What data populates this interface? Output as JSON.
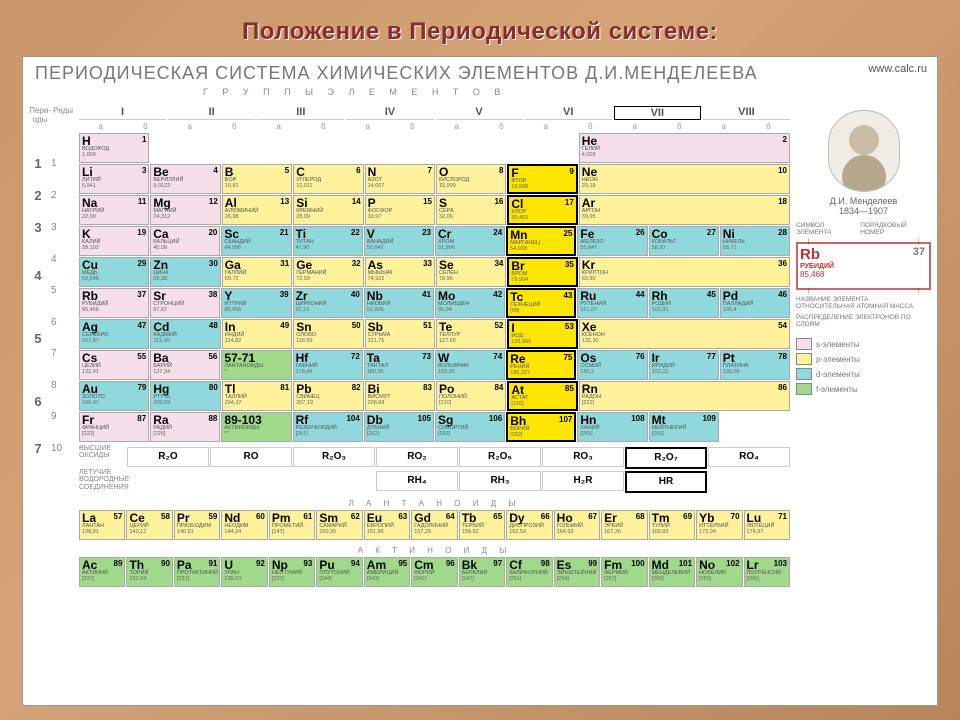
{
  "title": "Положение в Периодической системе:",
  "card_title": "ПЕРИОДИЧЕСКАЯ СИСТЕМА ХИМИЧЕСКИХ ЭЛЕМЕНТОВ Д.И.МЕНДЕЛЕЕВА",
  "subtitle": "Г Р У П П Ы   Э Л Е М Е Н Т О В",
  "site": "www.calc.ru",
  "groups": [
    "I",
    "II",
    "III",
    "IV",
    "V",
    "VI",
    "VII",
    "VIII"
  ],
  "periods": [
    {
      "p": "1",
      "rows": [
        "1"
      ]
    },
    {
      "p": "2",
      "rows": [
        "2"
      ]
    },
    {
      "p": "3",
      "rows": [
        "3"
      ]
    },
    {
      "p": "4",
      "rows": [
        "4",
        "5"
      ]
    },
    {
      "p": "5",
      "rows": [
        "6",
        "7"
      ]
    },
    {
      "p": "6",
      "rows": [
        "8",
        "9"
      ]
    },
    {
      "p": "7",
      "rows": [
        "10"
      ]
    }
  ],
  "colors": {
    "s": "#f6dfe8",
    "p": "#fff29a",
    "d": "#8fd9dc",
    "f": "#a1d98a",
    "none": "#ffffff",
    "hl": "#ffe600",
    "border": "#aaaaaa",
    "bg": "#ffffff",
    "title": "#8b2a2a"
  },
  "cells": {
    "r1": [
      {
        "s": "H",
        "n": 1,
        "nm": "ВОДОРОД",
        "w": "1,008",
        "c": "s"
      },
      null,
      null,
      null,
      null,
      null,
      null,
      {
        "s": "He",
        "n": 2,
        "nm": "ГЕЛИЙ",
        "w": "4,003",
        "c": "s",
        "col": 8
      }
    ],
    "r2": [
      {
        "s": "Li",
        "n": 3,
        "nm": "ЛИТИЙ",
        "w": "6,941",
        "c": "s"
      },
      {
        "s": "Be",
        "n": 4,
        "nm": "БЕРИЛЛИЙ",
        "w": "9,0122",
        "c": "s"
      },
      {
        "s": "B",
        "n": 5,
        "nm": "БОР",
        "w": "10,81",
        "c": "p"
      },
      {
        "s": "C",
        "n": 6,
        "nm": "УГЛЕРОД",
        "w": "12,011",
        "c": "p"
      },
      {
        "s": "N",
        "n": 7,
        "nm": "АЗОТ",
        "w": "14,007",
        "c": "p"
      },
      {
        "s": "O",
        "n": 8,
        "nm": "КИСЛОРОД",
        "w": "15,999",
        "c": "p"
      },
      {
        "s": "F",
        "n": 9,
        "nm": "ФТОР",
        "w": "18,998",
        "c": "hl",
        "hl": 1
      },
      {
        "s": "Ne",
        "n": 10,
        "nm": "НЕОН",
        "w": "20,18",
        "c": "p",
        "col": 8
      }
    ],
    "r3": [
      {
        "s": "Na",
        "n": 11,
        "nm": "НАТРИЙ",
        "w": "22,99",
        "c": "s"
      },
      {
        "s": "Mg",
        "n": 12,
        "nm": "МАГНИЙ",
        "w": "24,312",
        "c": "s"
      },
      {
        "s": "Al",
        "n": 13,
        "nm": "АЛЮМИНИЙ",
        "w": "26,98",
        "c": "p"
      },
      {
        "s": "Si",
        "n": 14,
        "nm": "КРЕМНИЙ",
        "w": "28,09",
        "c": "p"
      },
      {
        "s": "P",
        "n": 15,
        "nm": "ФОСФОР",
        "w": "30,97",
        "c": "p"
      },
      {
        "s": "S",
        "n": 16,
        "nm": "СЕРА",
        "w": "32,06",
        "c": "p"
      },
      {
        "s": "Cl",
        "n": 17,
        "nm": "ХЛОР",
        "w": "35,453",
        "c": "hl",
        "hl": 1
      },
      {
        "s": "Ar",
        "n": 18,
        "nm": "АРГОН",
        "w": "39,95",
        "c": "p",
        "col": 8
      }
    ],
    "r4": [
      {
        "s": "K",
        "n": 19,
        "nm": "КАЛИЙ",
        "w": "39,102",
        "c": "s"
      },
      {
        "s": "Ca",
        "n": 20,
        "nm": "КАЛЬЦИЙ",
        "w": "40,08",
        "c": "s"
      },
      {
        "s": "Sc",
        "n": 21,
        "nm": "СКАНДИЙ",
        "w": "44,956",
        "c": "d"
      },
      {
        "s": "Ti",
        "n": 22,
        "nm": "ТИТАН",
        "w": "47,90",
        "c": "d"
      },
      {
        "s": "V",
        "n": 23,
        "nm": "ВАНАДИЙ",
        "w": "50,942",
        "c": "d"
      },
      {
        "s": "Cr",
        "n": 24,
        "nm": "ХРОМ",
        "w": "51,996",
        "c": "d"
      },
      {
        "s": "Mn",
        "n": 25,
        "nm": "МАРГАНЕЦ",
        "w": "54,938",
        "c": "hl",
        "hl": 1
      },
      {
        "s": "Fe",
        "n": 26,
        "nm": "ЖЕЛЕЗО",
        "w": "55,847",
        "c": "d"
      },
      {
        "s": "Co",
        "n": 27,
        "nm": "КОБАЛЬТ",
        "w": "58,93",
        "c": "d"
      },
      {
        "s": "Ni",
        "n": 28,
        "nm": "НИКЕЛЬ",
        "w": "58,71",
        "c": "d"
      }
    ],
    "r5": [
      {
        "s": "Cu",
        "n": 29,
        "nm": "МЕДЬ",
        "w": "63,546",
        "c": "d"
      },
      {
        "s": "Zn",
        "n": 30,
        "nm": "ЦИНК",
        "w": "65,38",
        "c": "d"
      },
      {
        "s": "Ga",
        "n": 31,
        "nm": "ГАЛЛИЙ",
        "w": "69,72",
        "c": "p"
      },
      {
        "s": "Ge",
        "n": 32,
        "nm": "ГЕРМАНИЙ",
        "w": "72,59",
        "c": "p"
      },
      {
        "s": "As",
        "n": 33,
        "nm": "МЫШЬЯК",
        "w": "74,922",
        "c": "p"
      },
      {
        "s": "Se",
        "n": 34,
        "nm": "СЕЛЕН",
        "w": "78,96",
        "c": "p"
      },
      {
        "s": "Br",
        "n": 35,
        "nm": "БРОМ",
        "w": "79,904",
        "c": "hl",
        "hl": 1
      },
      {
        "s": "Kr",
        "n": 36,
        "nm": "КРИПТОН",
        "w": "83,80",
        "c": "p",
        "col": 8
      }
    ],
    "r6": [
      {
        "s": "Rb",
        "n": 37,
        "nm": "РУБИДИЙ",
        "w": "85,468",
        "c": "s"
      },
      {
        "s": "Sr",
        "n": 38,
        "nm": "СТРОНЦИЙ",
        "w": "87,62",
        "c": "s"
      },
      {
        "s": "Y",
        "n": 39,
        "nm": "ИТТРИЙ",
        "w": "88,906",
        "c": "d"
      },
      {
        "s": "Zr",
        "n": 40,
        "nm": "ЦИРКОНИЙ",
        "w": "91,22",
        "c": "d"
      },
      {
        "s": "Nb",
        "n": 41,
        "nm": "НИОБИЙ",
        "w": "92,906",
        "c": "d"
      },
      {
        "s": "Mo",
        "n": 42,
        "nm": "МОЛИБДЕН",
        "w": "95,94",
        "c": "d"
      },
      {
        "s": "Tc",
        "n": 43,
        "nm": "ТЕХНЕЦИЙ",
        "w": "[99]",
        "c": "hl",
        "hl": 1
      },
      {
        "s": "Ru",
        "n": 44,
        "nm": "РУТЕНИЙ",
        "w": "101,07",
        "c": "d"
      },
      {
        "s": "Rh",
        "n": 45,
        "nm": "РОДИЙ",
        "w": "102,91",
        "c": "d"
      },
      {
        "s": "Pd",
        "n": 46,
        "nm": "ПАЛЛАДИЙ",
        "w": "106,4",
        "c": "d"
      }
    ],
    "r7": [
      {
        "s": "Ag",
        "n": 47,
        "nm": "СЕРЕБРО",
        "w": "107,87",
        "c": "d"
      },
      {
        "s": "Cd",
        "n": 48,
        "nm": "КАДМИЙ",
        "w": "112,40",
        "c": "d"
      },
      {
        "s": "In",
        "n": 49,
        "nm": "ИНДИЙ",
        "w": "114,82",
        "c": "p"
      },
      {
        "s": "Sn",
        "n": 50,
        "nm": "ОЛОВО",
        "w": "118,69",
        "c": "p"
      },
      {
        "s": "Sb",
        "n": 51,
        "nm": "СУРЬМА",
        "w": "121,75",
        "c": "p"
      },
      {
        "s": "Te",
        "n": 52,
        "nm": "ТЕЛЛУР",
        "w": "127,60",
        "c": "p"
      },
      {
        "s": "I",
        "n": 53,
        "nm": "ИОД",
        "w": "126,905",
        "c": "hl",
        "hl": 1
      },
      {
        "s": "Xe",
        "n": 54,
        "nm": "КСЕНОН",
        "w": "131,30",
        "c": "p",
        "col": 8
      }
    ],
    "r8": [
      {
        "s": "Cs",
        "n": 55,
        "nm": "ЦЕЗИЙ",
        "w": "132,91",
        "c": "s"
      },
      {
        "s": "Ba",
        "n": 56,
        "nm": "БАРИЙ",
        "w": "137,34",
        "c": "s"
      },
      {
        "s": "57-71",
        "n": "",
        "nm": "ЛАНТАНОИДЫ",
        "w": "*",
        "c": "f"
      },
      {
        "s": "Hf",
        "n": 72,
        "nm": "ГАФНИЙ",
        "w": "178,49",
        "c": "d"
      },
      {
        "s": "Ta",
        "n": 73,
        "nm": "ТАНТАЛ",
        "w": "180,95",
        "c": "d"
      },
      {
        "s": "W",
        "n": 74,
        "nm": "ВОЛЬФРАМ",
        "w": "183,85",
        "c": "d"
      },
      {
        "s": "Re",
        "n": 75,
        "nm": "РЕНИЙ",
        "w": "186,207",
        "c": "hl",
        "hl": 1
      },
      {
        "s": "Os",
        "n": 76,
        "nm": "ОСМИЙ",
        "w": "190,2",
        "c": "d"
      },
      {
        "s": "Ir",
        "n": 77,
        "nm": "ИРИДИЙ",
        "w": "192,22",
        "c": "d"
      },
      {
        "s": "Pt",
        "n": 78,
        "nm": "ПЛАТИНА",
        "w": "195,09",
        "c": "d"
      }
    ],
    "r9": [
      {
        "s": "Au",
        "n": 79,
        "nm": "ЗОЛОТО",
        "w": "196,97",
        "c": "d"
      },
      {
        "s": "Hg",
        "n": 80,
        "nm": "РТУТЬ",
        "w": "200,59",
        "c": "d"
      },
      {
        "s": "Tl",
        "n": 81,
        "nm": "ТАЛЛИЙ",
        "w": "204,37",
        "c": "p"
      },
      {
        "s": "Pb",
        "n": 82,
        "nm": "СВИНЕЦ",
        "w": "207,19",
        "c": "p"
      },
      {
        "s": "Bi",
        "n": 83,
        "nm": "ВИСМУТ",
        "w": "208,98",
        "c": "p"
      },
      {
        "s": "Po",
        "n": 84,
        "nm": "ПОЛОНИЙ",
        "w": "[210]",
        "c": "p"
      },
      {
        "s": "At",
        "n": 85,
        "nm": "АСТАТ",
        "w": "[210]",
        "c": "hl",
        "hl": 1
      },
      {
        "s": "Rn",
        "n": 86,
        "nm": "РАДОН",
        "w": "[222]",
        "c": "p",
        "col": 8
      }
    ],
    "r10": [
      {
        "s": "Fr",
        "n": 87,
        "nm": "ФРАНЦИЙ",
        "w": "[223]",
        "c": "s"
      },
      {
        "s": "Ra",
        "n": 88,
        "nm": "РАДИЙ",
        "w": "[226]",
        "c": "s"
      },
      {
        "s": "89-103",
        "n": "",
        "nm": "АКТИНОИДЫ",
        "w": "**",
        "c": "f"
      },
      {
        "s": "Rf",
        "n": 104,
        "nm": "РЕЗЕРФОРДИЙ",
        "w": "[261]",
        "c": "d"
      },
      {
        "s": "Db",
        "n": 105,
        "nm": "ДУБНИЙ",
        "w": "[262]",
        "c": "d"
      },
      {
        "s": "Sg",
        "n": 106,
        "nm": "СИБОРГИЙ",
        "w": "[263]",
        "c": "d"
      },
      {
        "s": "Bh",
        "n": 107,
        "nm": "БОРИЙ",
        "w": "[262]",
        "c": "hl",
        "hl": 1
      },
      {
        "s": "Hn",
        "n": 108,
        "nm": "ХАНИЙ",
        "w": "[265]",
        "c": "d"
      },
      {
        "s": "Mt",
        "n": 109,
        "nm": "МЕЙТНЕРИЙ",
        "w": "[266]",
        "c": "d"
      }
    ]
  },
  "oxide_label": "ВЫСШИЕ\nОКСИДЫ",
  "oxides": [
    "R₂O",
    "RO",
    "R₂O₃",
    "RO₂",
    "R₂O₅",
    "RO₃",
    "R₂O₇",
    "RO₄"
  ],
  "hydride_label": "ЛЕТУЧИЕ\nВОДОРОДНЫЕ\nСОЕДИНЕНИЯ",
  "hydrides": [
    "",
    "",
    "",
    "RH₄",
    "RH₃",
    "H₂R",
    "HR",
    ""
  ],
  "lan_title": "Л А Н Т А Н О И Д Ы",
  "lanthanoids": [
    {
      "s": "La",
      "n": 57,
      "nm": "ЛАНТАН",
      "w": "138,91"
    },
    {
      "s": "Ce",
      "n": 58,
      "nm": "ЦЕРИЙ",
      "w": "140,12"
    },
    {
      "s": "Pr",
      "n": 59,
      "nm": "ПРАЗЕОДИМ",
      "w": "140,91"
    },
    {
      "s": "Nd",
      "n": 60,
      "nm": "НЕОДИМ",
      "w": "144,24"
    },
    {
      "s": "Pm",
      "n": 61,
      "nm": "ПРОМЕТИЙ",
      "w": "[147]"
    },
    {
      "s": "Sm",
      "n": 62,
      "nm": "САМАРИЙ",
      "w": "150,35"
    },
    {
      "s": "Eu",
      "n": 63,
      "nm": "ЕВРОПИЙ",
      "w": "151,96"
    },
    {
      "s": "Gd",
      "n": 64,
      "nm": "ГАДОЛИНИЙ",
      "w": "157,25"
    },
    {
      "s": "Tb",
      "n": 65,
      "nm": "ТЕРБИЙ",
      "w": "158,92"
    },
    {
      "s": "Dy",
      "n": 66,
      "nm": "ДИСПРОЗИЙ",
      "w": "162,50"
    },
    {
      "s": "Ho",
      "n": 67,
      "nm": "ГОЛЬМИЙ",
      "w": "164,93"
    },
    {
      "s": "Er",
      "n": 68,
      "nm": "ЭРБИЙ",
      "w": "167,26"
    },
    {
      "s": "Tm",
      "n": 69,
      "nm": "ТУЛИЙ",
      "w": "168,93"
    },
    {
      "s": "Yb",
      "n": 70,
      "nm": "ИТТЕРБИЙ",
      "w": "173,04"
    },
    {
      "s": "Lu",
      "n": 71,
      "nm": "ЛЮТЕЦИЙ",
      "w": "174,97"
    }
  ],
  "act_title": "А К Т И Н О И Д Ы",
  "actinoids": [
    {
      "s": "Ac",
      "n": 89,
      "nm": "АКТИНИЙ",
      "w": "[227]"
    },
    {
      "s": "Th",
      "n": 90,
      "nm": "ТОРИЙ",
      "w": "232,04"
    },
    {
      "s": "Pa",
      "n": 91,
      "nm": "ПРОТАКТИНИЙ",
      "w": "[231]"
    },
    {
      "s": "U",
      "n": 92,
      "nm": "УРАН",
      "w": "238,03"
    },
    {
      "s": "Np",
      "n": 93,
      "nm": "НЕПТУНИЙ",
      "w": "[237]"
    },
    {
      "s": "Pu",
      "n": 94,
      "nm": "ПЛУТОНИЙ",
      "w": "[244]"
    },
    {
      "s": "Am",
      "n": 95,
      "nm": "АМЕРИЦИЙ",
      "w": "[243]"
    },
    {
      "s": "Cm",
      "n": 96,
      "nm": "КЮРИЙ",
      "w": "[247]"
    },
    {
      "s": "Bk",
      "n": 97,
      "nm": "БЕРКЛИЙ",
      "w": "[247]"
    },
    {
      "s": "Cf",
      "n": 98,
      "nm": "КАЛИФОРНИЙ",
      "w": "[251]"
    },
    {
      "s": "Es",
      "n": 99,
      "nm": "ЭЙНШТЕЙНИЙ",
      "w": "[254]"
    },
    {
      "s": "Fm",
      "n": 100,
      "nm": "ФЕРМИЙ",
      "w": "[257]"
    },
    {
      "s": "Md",
      "n": 101,
      "nm": "МЕНДЕЛЕВИЙ",
      "w": "[258]"
    },
    {
      "s": "No",
      "n": 102,
      "nm": "НОБЕЛИЙ",
      "w": "[255]"
    },
    {
      "s": "Lr",
      "n": 103,
      "nm": "ЛОУРЕНСИЙ",
      "w": "[256]"
    }
  ],
  "mendeleev": {
    "name": "Д.И. Менделеев",
    "years": "1834—1907"
  },
  "legend_labels": {
    "sym": "СИМВОЛ ЭЛЕМЕНТА",
    "num": "ПОРЯДКОВЫЙ НОМЕР",
    "name": "НАЗВАНИЕ ЭЛЕМЕНТА",
    "mass": "ОТНОСИТЕЛЬНАЯ АТОМНАЯ МАССА",
    "dist": "РАСПРЕДЕЛЕНИЕ ЭЛЕКТРОНОВ ПО СЛОЯМ"
  },
  "legend_sample": {
    "s": "Rb",
    "n": 37,
    "nm": "РУБИДИЙ",
    "w": "85,468"
  },
  "swatches": [
    {
      "c": "#f6dfe8",
      "t": "s-элементы"
    },
    {
      "c": "#fff29a",
      "t": "p-элементы"
    },
    {
      "c": "#8fd9dc",
      "t": "d-элементы"
    },
    {
      "c": "#a1d98a",
      "t": "f-элементы"
    }
  ],
  "left_labels": {
    "period": "Пери-оды",
    "row": "Ряды"
  }
}
